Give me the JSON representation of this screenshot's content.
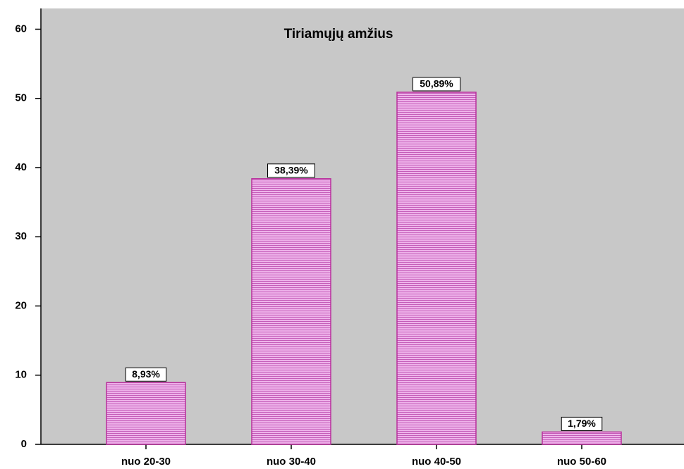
{
  "chart_data": {
    "type": "bar",
    "title": "Tiriamųjų amžius",
    "categories": [
      "nuo 20-30",
      "nuo 30-40",
      "nuo 40-50",
      "nuo 50-60"
    ],
    "values": [
      8.93,
      38.39,
      50.89,
      1.79
    ],
    "value_labels": [
      "8,93%",
      "38,39%",
      "50,89%",
      "1,79%"
    ],
    "color": "#e8a6e4",
    "ylim": [
      0,
      63
    ],
    "yticks": [
      0,
      10,
      20,
      30,
      40,
      50,
      60
    ]
  }
}
